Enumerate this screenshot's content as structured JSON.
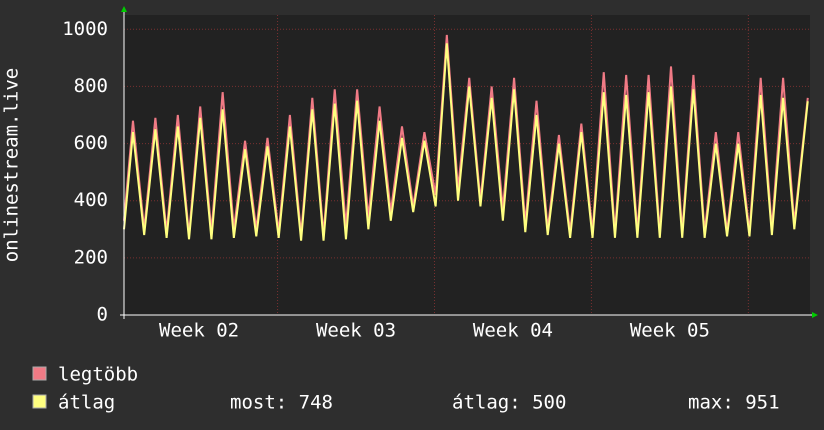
{
  "chart_data": {
    "type": "line",
    "ylabel": "onlinestream.live",
    "x": [
      0,
      0.4,
      0.9,
      1.4,
      1.9,
      2.4,
      2.9,
      3.4,
      3.9,
      4.4,
      4.9,
      5.4,
      5.9,
      6.4,
      6.9,
      7.4,
      7.9,
      8.4,
      8.9,
      9.4,
      9.9,
      10.4,
      10.9,
      11.4,
      11.9,
      12.4,
      12.9,
      13.4,
      13.9,
      14.4,
      14.9,
      15.4,
      15.9,
      16.4,
      16.9,
      17.4,
      17.9,
      18.4,
      18.9,
      19.4,
      19.9,
      20.4,
      20.9,
      21.4,
      21.9,
      22.4,
      22.9,
      23.4,
      23.9,
      24.4,
      24.9,
      25.4,
      25.9,
      26.4,
      26.9,
      27.4,
      27.9,
      28.4,
      28.9,
      29.4,
      29.9,
      30.5
    ],
    "series": [
      {
        "name": "legtöbb",
        "color": "#f07a85",
        "values": [
          330,
          680,
          300,
          690,
          290,
          700,
          280,
          730,
          290,
          780,
          300,
          610,
          300,
          620,
          290,
          700,
          280,
          760,
          280,
          790,
          310,
          790,
          340,
          730,
          360,
          660,
          380,
          640,
          420,
          980,
          440,
          830,
          400,
          800,
          370,
          830,
          320,
          750,
          300,
          630,
          290,
          670,
          290,
          850,
          290,
          840,
          290,
          840,
          290,
          870,
          290,
          840,
          290,
          640,
          290,
          640,
          290,
          830,
          300,
          830,
          320,
          760
        ]
      },
      {
        "name": "átlag",
        "color": "#ffff80",
        "values": [
          300,
          640,
          280,
          650,
          270,
          660,
          265,
          690,
          265,
          720,
          270,
          580,
          275,
          590,
          270,
          660,
          260,
          720,
          260,
          740,
          265,
          750,
          300,
          680,
          330,
          620,
          360,
          610,
          380,
          951,
          400,
          800,
          380,
          760,
          330,
          790,
          290,
          700,
          280,
          600,
          270,
          640,
          270,
          780,
          270,
          770,
          270,
          780,
          270,
          800,
          270,
          790,
          270,
          600,
          275,
          600,
          275,
          770,
          280,
          760,
          300,
          748
        ]
      }
    ],
    "stats": [
      "most: 748",
      "átlag: 500",
      "max: 951"
    ],
    "xlim": [
      0,
      30.6
    ],
    "xticks": [
      {
        "value": 3.35,
        "label": "Week 02"
      },
      {
        "value": 10.35,
        "label": "Week 03"
      },
      {
        "value": 17.35,
        "label": "Week 04"
      },
      {
        "value": 24.35,
        "label": "Week 05"
      }
    ],
    "xgrid": [
      6.85,
      13.85,
      20.85,
      27.85
    ],
    "ylim": [
      0,
      1050
    ],
    "yticks": [
      0,
      200,
      400,
      600,
      800,
      1000
    ],
    "grid": true
  }
}
